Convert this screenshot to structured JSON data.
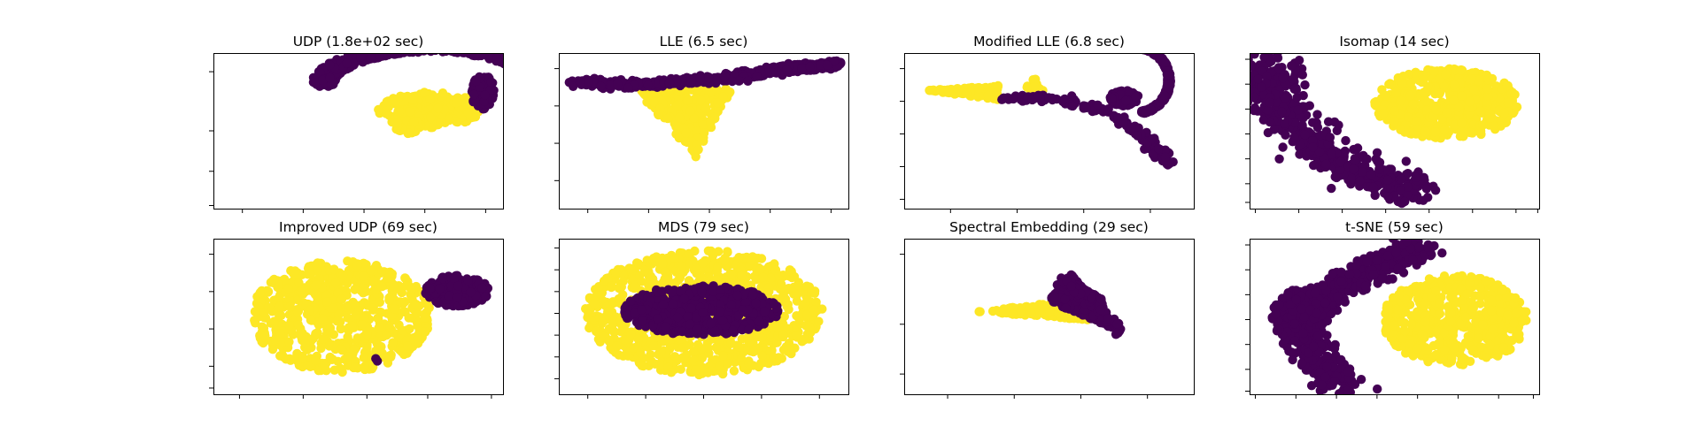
{
  "figure": {
    "background": "#ffffff",
    "class_colors": [
      "#440154",
      "#fde725"
    ]
  },
  "chart_data": [
    {
      "type": "scatter",
      "title": "UDP (1.8e+02 sec)",
      "xlabel": "",
      "ylabel": "",
      "tick_labels": "hidden",
      "clusters": [
        {
          "class": 1,
          "shape": "ellipse",
          "cx": 0.48,
          "cy": 0.27,
          "rx": 0.36,
          "ry": 0.23,
          "count": 240
        },
        {
          "class": 1,
          "shape": "ellipse",
          "cx": 0.34,
          "cy": 0.12,
          "rx": 0.1,
          "ry": 0.16,
          "count": 80
        },
        {
          "class": 1,
          "shape": "ellipse",
          "cx": 0.74,
          "cy": 0.38,
          "rx": 0.09,
          "ry": 0.06,
          "count": 25
        },
        {
          "class": 0,
          "shape": "arc",
          "cx": 0.5,
          "cy": 0.55,
          "rx": 0.84,
          "ry": 0.58,
          "t0": 0.05,
          "t1": 3.1,
          "thickness": 0.2,
          "count": 620
        },
        {
          "class": 0,
          "shape": "ellipse",
          "cx": 0.86,
          "cy": 0.5,
          "rx": 0.08,
          "ry": 0.22,
          "count": 90
        }
      ]
    },
    {
      "type": "scatter",
      "title": "LLE (6.5 sec)",
      "xlabel": "",
      "ylabel": "",
      "tick_labels": "hidden",
      "clusters": [
        {
          "class": 1,
          "shape": "tri",
          "p": [
            [
              -0.5,
              0.6
            ],
            [
              0.2,
              0.55
            ],
            [
              -0.05,
              -0.35
            ]
          ],
          "count": 260
        },
        {
          "class": 0,
          "shape": "curve",
          "pts": [
            [
              -0.92,
              0.62
            ],
            [
              -0.4,
              0.6
            ],
            [
              0.2,
              0.68
            ],
            [
              0.6,
              0.8
            ],
            [
              0.94,
              0.86
            ]
          ],
          "width": 0.05,
          "count": 520
        }
      ]
    },
    {
      "type": "scatter",
      "title": "Modified LLE (6.8 sec)",
      "xlabel": "",
      "ylabel": "",
      "tick_labels": "hidden",
      "clusters": [
        {
          "class": 1,
          "shape": "tri",
          "p": [
            [
              -0.85,
              0.52
            ],
            [
              -0.35,
              0.4
            ],
            [
              -0.35,
              0.58
            ]
          ],
          "count": 160
        },
        {
          "class": 1,
          "shape": "ellipse",
          "cx": -0.1,
          "cy": 0.55,
          "rx": 0.06,
          "ry": 0.12,
          "count": 18
        },
        {
          "class": 0,
          "shape": "arc",
          "cx": 0.6,
          "cy": 0.65,
          "rx": 0.24,
          "ry": 0.44,
          "t0": -1.4,
          "t1": 1.7,
          "thickness": 0.09,
          "count": 320
        },
        {
          "class": 0,
          "shape": "ellipse",
          "cx": 0.52,
          "cy": 0.42,
          "rx": 0.1,
          "ry": 0.1,
          "count": 120
        },
        {
          "class": 0,
          "shape": "curve",
          "pts": [
            [
              -0.3,
              0.42
            ],
            [
              0.1,
              0.4
            ],
            [
              0.4,
              0.25
            ],
            [
              0.68,
              -0.1
            ],
            [
              0.85,
              -0.45
            ]
          ],
          "width": 0.05,
          "count": 140
        }
      ]
    },
    {
      "type": "scatter",
      "title": "Isomap (14 sec)",
      "xlabel": "",
      "ylabel": "",
      "tick_labels": "hidden",
      "clusters": [
        {
          "class": 1,
          "shape": "ellipse",
          "cx": 0.36,
          "cy": 0.35,
          "rx": 0.5,
          "ry": 0.45,
          "count": 620
        },
        {
          "class": 0,
          "shape": "curve",
          "pts": [
            [
              -0.88,
              0.9
            ],
            [
              -0.8,
              0.4
            ],
            [
              -0.55,
              -0.2
            ],
            [
              -0.2,
              -0.55
            ],
            [
              0.15,
              -0.8
            ]
          ],
          "width": 0.2,
          "count": 480
        }
      ]
    },
    {
      "type": "scatter",
      "title": "Improved UDP (69 sec)",
      "xlabel": "",
      "ylabel": "",
      "tick_labels": "hidden",
      "clusters": [
        {
          "class": 1,
          "shape": "ellipse",
          "cx": -0.12,
          "cy": 0.0,
          "rx": 0.62,
          "ry": 0.72,
          "count": 700
        },
        {
          "class": 0,
          "shape": "ellipse",
          "cx": 0.68,
          "cy": 0.33,
          "rx": 0.22,
          "ry": 0.2,
          "count": 230
        },
        {
          "class": 0,
          "shape": "ellipse",
          "cx": 0.12,
          "cy": -0.55,
          "rx": 0.02,
          "ry": 0.03,
          "count": 2
        }
      ]
    },
    {
      "type": "scatter",
      "title": "MDS (79 sec)",
      "xlabel": "",
      "ylabel": "",
      "tick_labels": "hidden",
      "clusters": [
        {
          "class": 1,
          "shape": "ellipse",
          "cx": 0.0,
          "cy": 0.05,
          "rx": 0.82,
          "ry": 0.8,
          "count": 950
        },
        {
          "class": 0,
          "shape": "ellipse",
          "cx": -0.02,
          "cy": 0.08,
          "rx": 0.54,
          "ry": 0.32,
          "count": 600
        }
      ]
    },
    {
      "type": "scatter",
      "title": "Spectral Embedding (29 sec)",
      "xlabel": "",
      "ylabel": "",
      "tick_labels": "hidden",
      "clusters": [
        {
          "class": 1,
          "shape": "tri",
          "p": [
            [
              -0.5,
              0.06
            ],
            [
              0.3,
              0.24
            ],
            [
              0.3,
              -0.05
            ]
          ],
          "count": 220
        },
        {
          "class": 0,
          "shape": "tri",
          "p": [
            [
              0.0,
              0.2
            ],
            [
              0.15,
              0.55
            ],
            [
              0.5,
              -0.2
            ]
          ],
          "count": 360
        },
        {
          "class": 0,
          "shape": "curve",
          "pts": [
            [
              0.1,
              0.45
            ],
            [
              0.3,
              0.25
            ],
            [
              0.5,
              -0.2
            ]
          ],
          "width": 0.05,
          "count": 80
        }
      ]
    },
    {
      "type": "scatter",
      "title": "t-SNE (59 sec)",
      "xlabel": "",
      "ylabel": "",
      "tick_labels": "hidden",
      "clusters": [
        {
          "class": 1,
          "shape": "ellipse",
          "cx": 0.42,
          "cy": -0.05,
          "rx": 0.5,
          "ry": 0.58,
          "count": 620
        },
        {
          "class": 0,
          "shape": "curve",
          "pts": [
            [
              0.15,
              0.92
            ],
            [
              -0.05,
              0.7
            ],
            [
              -0.4,
              0.35
            ],
            [
              -0.65,
              0.0
            ],
            [
              -0.55,
              -0.55
            ],
            [
              -0.35,
              -0.9
            ]
          ],
          "width": 0.16,
          "count": 520
        },
        {
          "class": 0,
          "shape": "ellipse",
          "cx": -0.65,
          "cy": 0.0,
          "rx": 0.2,
          "ry": 0.35,
          "count": 170
        }
      ]
    }
  ]
}
